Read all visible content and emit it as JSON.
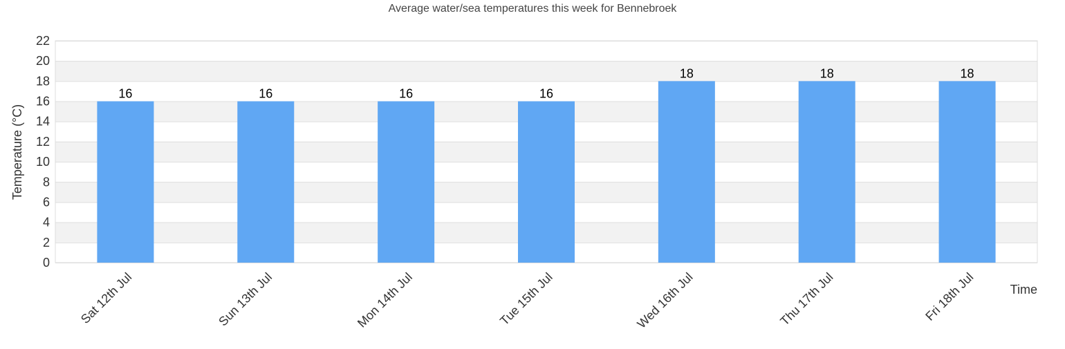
{
  "chart_data": {
    "type": "bar",
    "title": "Average water/sea temperatures this week for Bennebroek",
    "xlabel": "Time",
    "ylabel": "Temperature (°C)",
    "categories": [
      "Sat 12th Jul",
      "Sun 13th Jul",
      "Mon 14th Jul",
      "Tue 15th Jul",
      "Wed 16th Jul",
      "Thu 17th Jul",
      "Fri 18th Jul"
    ],
    "values": [
      16,
      16,
      16,
      16,
      18,
      18,
      18
    ],
    "ylim": [
      0,
      22
    ],
    "yticks": [
      0,
      2,
      4,
      6,
      8,
      10,
      12,
      14,
      16,
      18,
      20,
      22
    ],
    "grid": true,
    "banded_background": true,
    "legend": "none",
    "colors": {
      "bar": "#60a7f3",
      "band": "#f2f2f2",
      "grid": "#dddddd"
    }
  }
}
